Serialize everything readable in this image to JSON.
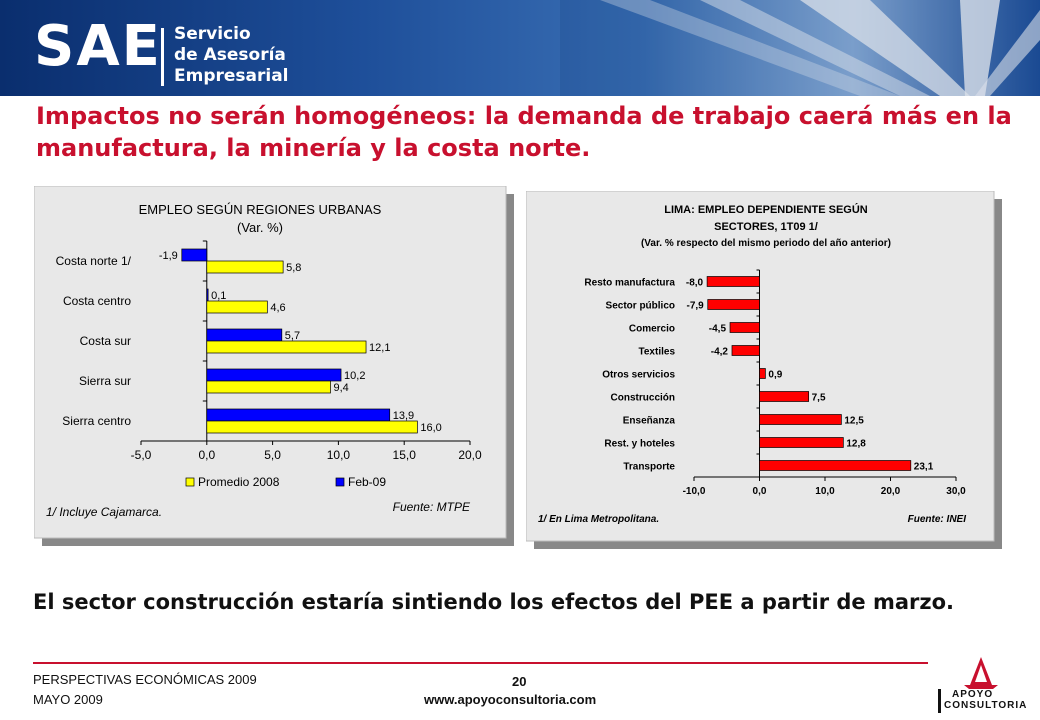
{
  "header": {
    "logo": "SAE",
    "logo_sub": [
      "Servicio",
      "de Asesoría",
      "Empresarial"
    ]
  },
  "headline": "Impactos no serán homogéneos: la demanda de trabajo caerá más en la manufactura, la minería y la costa norte.",
  "subtitle": "El sector construcción estaría sintiendo los efectos del PEE a partir de marzo.",
  "footer": {
    "line1": "PERSPECTIVAS ECONÓMICAS 2009",
    "line2": "MAYO 2009",
    "page": "20",
    "url": "www.apoyoconsultoria.com",
    "brand_line1": "APOYO",
    "brand_line2": "CONSULTORIA"
  },
  "colors": {
    "red": "#c8102e",
    "bar_red": "#ff0000",
    "bar_blue": "#0000ff",
    "bar_yellow": "#ffff00"
  },
  "chart_data": [
    {
      "type": "bar",
      "orientation": "horizontal",
      "title": "EMPLEO SEGÚN REGIONES URBANAS",
      "subtitle": "(Var. %)",
      "categories": [
        "Costa norte 1/",
        "Costa centro",
        "Costa sur",
        "Sierra sur",
        "Sierra centro"
      ],
      "series": [
        {
          "name": "Feb-09",
          "color": "#0000ff",
          "values": [
            -1.9,
            0.1,
            5.7,
            10.2,
            13.9
          ],
          "labels": [
            "-1,9",
            "0,1",
            "5,7",
            "10,2",
            "13,9"
          ]
        },
        {
          "name": "Promedio 2008",
          "color": "#ffff00",
          "values": [
            5.8,
            4.6,
            12.1,
            9.4,
            16.0
          ],
          "labels": [
            "5,8",
            "4,6",
            "12,1",
            "9,4",
            "16,0"
          ]
        }
      ],
      "legend_order": [
        "Promedio 2008",
        "Feb-09"
      ],
      "legend": "bottom",
      "xlim": [
        -5,
        20
      ],
      "xticks": [
        -5,
        0,
        5,
        10,
        15,
        20
      ],
      "xtick_labels": [
        "-5,0",
        "0,0",
        "5,0",
        "10,0",
        "15,0",
        "20,0"
      ],
      "note": "1/ Incluye Cajamarca.",
      "source": "Fuente: MTPE"
    },
    {
      "type": "bar",
      "orientation": "horizontal",
      "title": "LIMA: EMPLEO DEPENDIENTE SEGÚN",
      "title2": "SECTORES, 1T09 1/",
      "subtitle": "(Var. % respecto del mismo periodo del año anterior)",
      "categories": [
        "Resto manufactura",
        "Sector público",
        "Comercio",
        "Textiles",
        "Otros servicios",
        "Construcción",
        "Enseñanza",
        "Rest. y hoteles",
        "Transporte"
      ],
      "values": [
        -8.0,
        -7.9,
        -4.5,
        -4.2,
        0.9,
        7.5,
        12.5,
        12.8,
        23.1
      ],
      "labels": [
        "-8,0",
        "-7,9",
        "-4,5",
        "-4,2",
        "0,9",
        "7,5",
        "12,5",
        "12,8",
        "23,1"
      ],
      "color": "#ff0000",
      "xlim": [
        -10,
        30
      ],
      "xticks": [
        -10,
        0,
        10,
        20,
        30
      ],
      "xtick_labels": [
        "-10,0",
        "0,0",
        "10,0",
        "20,0",
        "30,0"
      ],
      "note": "1/ En Lima Metropolitana.",
      "source": "Fuente: INEI"
    }
  ]
}
